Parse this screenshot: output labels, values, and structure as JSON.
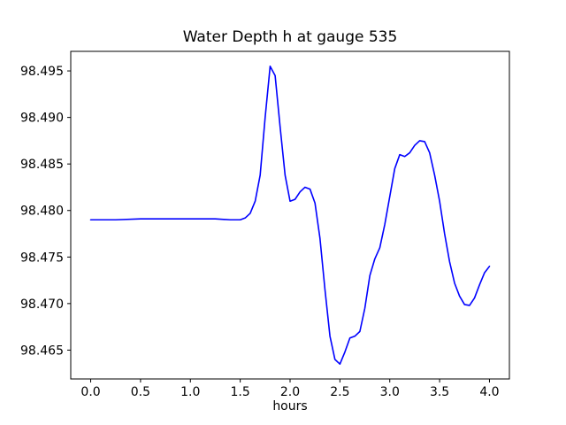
{
  "chart_data": {
    "type": "line",
    "title": "Water Depth h at gauge 535",
    "xlabel": "hours",
    "ylabel": "",
    "xlim": [
      -0.2,
      4.2
    ],
    "ylim": [
      98.4619,
      98.4971
    ],
    "xticks": [
      0.0,
      0.5,
      1.0,
      1.5,
      2.0,
      2.5,
      3.0,
      3.5,
      4.0
    ],
    "yticks": [
      98.465,
      98.47,
      98.475,
      98.48,
      98.485,
      98.49,
      98.495
    ],
    "grid": false,
    "legend": "none",
    "line_color": "#0000ff",
    "frame_color": "#000000",
    "x": [
      0.0,
      0.25,
      0.5,
      0.75,
      1.0,
      1.25,
      1.4,
      1.5,
      1.55,
      1.6,
      1.65,
      1.7,
      1.75,
      1.8,
      1.85,
      1.9,
      1.95,
      2.0,
      2.05,
      2.1,
      2.15,
      2.2,
      2.25,
      2.3,
      2.35,
      2.4,
      2.45,
      2.5,
      2.55,
      2.6,
      2.65,
      2.7,
      2.75,
      2.8,
      2.85,
      2.9,
      2.95,
      3.0,
      3.05,
      3.1,
      3.15,
      3.2,
      3.25,
      3.3,
      3.35,
      3.4,
      3.45,
      3.5,
      3.55,
      3.6,
      3.65,
      3.7,
      3.75,
      3.8,
      3.85,
      3.9,
      3.95,
      4.0
    ],
    "y": [
      98.479,
      98.479,
      98.4791,
      98.4791,
      98.4791,
      98.4791,
      98.479,
      98.479,
      98.4792,
      98.4797,
      98.481,
      98.4838,
      98.49,
      98.4955,
      98.4945,
      98.489,
      98.4838,
      98.481,
      98.4812,
      98.482,
      98.4825,
      98.4823,
      98.4808,
      98.477,
      98.4715,
      98.4665,
      98.464,
      98.4635,
      98.4648,
      98.4663,
      98.4665,
      98.467,
      98.4695,
      98.473,
      98.4748,
      98.476,
      98.4785,
      98.4815,
      98.4845,
      98.486,
      98.4858,
      98.4862,
      98.487,
      98.4875,
      98.4874,
      98.4862,
      98.4838,
      98.481,
      98.4775,
      98.4745,
      98.4722,
      98.4708,
      98.4699,
      98.4698,
      98.4706,
      98.472,
      98.4733,
      98.474
    ]
  }
}
